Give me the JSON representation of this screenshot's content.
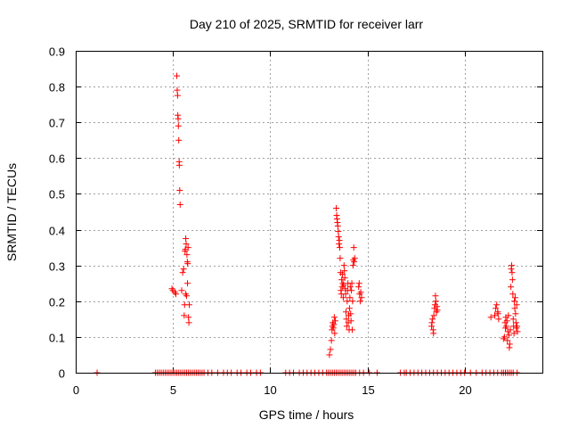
{
  "chart_data": {
    "type": "scatter",
    "title": "Day 210 of 2025, SRMTID for receiver larr",
    "xlabel": "GPS time / hours",
    "ylabel": "SRMTID / TECUs",
    "xlim": [
      0,
      24
    ],
    "ylim": [
      0,
      0.9
    ],
    "xticks": [
      0,
      5,
      10,
      15,
      20
    ],
    "yticks": [
      0,
      0.1,
      0.2,
      0.3,
      0.4,
      0.5,
      0.6,
      0.7,
      0.8,
      0.9
    ],
    "xtick_labels": [
      "0",
      "5",
      "10",
      "15",
      "20"
    ],
    "ytick_labels": [
      "0",
      "0.1",
      "0.2",
      "0.3",
      "0.4",
      "0.5",
      "0.6",
      "0.7",
      "0.8",
      "0.9"
    ],
    "grid": true,
    "marker": "+",
    "series_color": "#ff0000",
    "series": [
      {
        "name": "SRMTID",
        "points": [
          [
            1.1,
            0
          ],
          [
            4.1,
            0
          ],
          [
            4.2,
            0
          ],
          [
            4.3,
            0
          ],
          [
            4.4,
            0
          ],
          [
            4.5,
            0
          ],
          [
            4.6,
            0
          ],
          [
            4.7,
            0
          ],
          [
            4.8,
            0
          ],
          [
            4.9,
            0
          ],
          [
            5.0,
            0
          ],
          [
            5.1,
            0
          ],
          [
            5.2,
            0
          ],
          [
            5.3,
            0
          ],
          [
            5.4,
            0
          ],
          [
            5.5,
            0
          ],
          [
            5.6,
            0
          ],
          [
            5.7,
            0
          ],
          [
            5.8,
            0
          ],
          [
            5.9,
            0
          ],
          [
            6.0,
            0
          ],
          [
            6.1,
            0
          ],
          [
            6.2,
            0
          ],
          [
            6.3,
            0
          ],
          [
            6.4,
            0
          ],
          [
            6.5,
            0
          ],
          [
            6.6,
            0
          ],
          [
            6.8,
            0
          ],
          [
            7.0,
            0
          ],
          [
            7.3,
            0
          ],
          [
            7.6,
            0
          ],
          [
            7.8,
            0
          ],
          [
            8.0,
            0
          ],
          [
            8.3,
            0
          ],
          [
            8.5,
            0
          ],
          [
            8.8,
            0
          ],
          [
            9.0,
            0
          ],
          [
            9.3,
            0
          ],
          [
            9.5,
            0
          ],
          [
            10.8,
            0
          ],
          [
            11.0,
            0
          ],
          [
            11.2,
            0
          ],
          [
            11.5,
            0
          ],
          [
            11.7,
            0
          ],
          [
            11.9,
            0
          ],
          [
            12.1,
            0
          ],
          [
            12.3,
            0
          ],
          [
            12.5,
            0
          ],
          [
            12.7,
            0
          ],
          [
            12.9,
            0
          ],
          [
            13.0,
            0
          ],
          [
            13.1,
            0
          ],
          [
            13.2,
            0
          ],
          [
            13.3,
            0
          ],
          [
            13.4,
            0
          ],
          [
            13.5,
            0
          ],
          [
            13.6,
            0
          ],
          [
            13.7,
            0
          ],
          [
            13.8,
            0
          ],
          [
            13.9,
            0
          ],
          [
            14.0,
            0
          ],
          [
            14.1,
            0
          ],
          [
            14.2,
            0
          ],
          [
            14.3,
            0
          ],
          [
            14.4,
            0
          ],
          [
            14.6,
            0
          ],
          [
            14.8,
            0
          ],
          [
            15.1,
            0
          ],
          [
            15.5,
            0
          ],
          [
            16.7,
            0
          ],
          [
            16.9,
            0
          ],
          [
            17.0,
            0
          ],
          [
            17.2,
            0
          ],
          [
            17.4,
            0
          ],
          [
            17.6,
            0
          ],
          [
            17.8,
            0
          ],
          [
            18.0,
            0
          ],
          [
            18.2,
            0
          ],
          [
            18.4,
            0
          ],
          [
            18.6,
            0
          ],
          [
            18.8,
            0
          ],
          [
            19.0,
            0
          ],
          [
            19.2,
            0
          ],
          [
            19.4,
            0
          ],
          [
            19.6,
            0
          ],
          [
            19.8,
            0
          ],
          [
            20.0,
            0
          ],
          [
            20.3,
            0
          ],
          [
            20.6,
            0
          ],
          [
            20.9,
            0
          ],
          [
            21.1,
            0
          ],
          [
            21.3,
            0
          ],
          [
            21.5,
            0
          ],
          [
            21.7,
            0
          ],
          [
            21.9,
            0
          ],
          [
            22.0,
            0
          ],
          [
            22.1,
            0
          ],
          [
            22.2,
            0
          ],
          [
            22.3,
            0
          ],
          [
            22.4,
            0
          ],
          [
            22.5,
            0
          ],
          [
            22.7,
            0
          ],
          [
            4.95,
            0.235
          ],
          [
            5.0,
            0.23
          ],
          [
            5.1,
            0.225
          ],
          [
            5.15,
            0.22
          ],
          [
            5.2,
            0.83
          ],
          [
            5.22,
            0.79
          ],
          [
            5.24,
            0.775
          ],
          [
            5.25,
            0.72
          ],
          [
            5.27,
            0.71
          ],
          [
            5.28,
            0.69
          ],
          [
            5.3,
            0.65
          ],
          [
            5.32,
            0.59
          ],
          [
            5.33,
            0.58
          ],
          [
            5.35,
            0.51
          ],
          [
            5.37,
            0.47
          ],
          [
            5.45,
            0.23
          ],
          [
            5.5,
            0.28
          ],
          [
            5.55,
            0.29
          ],
          [
            5.58,
            0.16
          ],
          [
            5.6,
            0.19
          ],
          [
            5.62,
            0.34
          ],
          [
            5.64,
            0.345
          ],
          [
            5.65,
            0.22
          ],
          [
            5.66,
            0.375
          ],
          [
            5.68,
            0.36
          ],
          [
            5.7,
            0.215
          ],
          [
            5.72,
            0.33
          ],
          [
            5.74,
            0.31
          ],
          [
            5.75,
            0.25
          ],
          [
            5.76,
            0.305
          ],
          [
            5.78,
            0.35
          ],
          [
            5.8,
            0.155
          ],
          [
            5.82,
            0.14
          ],
          [
            5.84,
            0.19
          ],
          [
            13.05,
            0.05
          ],
          [
            13.1,
            0.065
          ],
          [
            13.15,
            0.09
          ],
          [
            13.18,
            0.12
          ],
          [
            13.2,
            0.13
          ],
          [
            13.22,
            0.14
          ],
          [
            13.25,
            0.125
          ],
          [
            13.28,
            0.135
          ],
          [
            13.3,
            0.155
          ],
          [
            13.32,
            0.11
          ],
          [
            13.35,
            0.145
          ],
          [
            13.4,
            0.46
          ],
          [
            13.42,
            0.44
          ],
          [
            13.44,
            0.43
          ],
          [
            13.46,
            0.42
          ],
          [
            13.48,
            0.41
          ],
          [
            13.5,
            0.395
          ],
          [
            13.52,
            0.38
          ],
          [
            13.54,
            0.36
          ],
          [
            13.56,
            0.37
          ],
          [
            13.58,
            0.35
          ],
          [
            13.6,
            0.32
          ],
          [
            13.62,
            0.28
          ],
          [
            13.64,
            0.23
          ],
          [
            13.66,
            0.22
          ],
          [
            13.68,
            0.26
          ],
          [
            13.7,
            0.24
          ],
          [
            13.72,
            0.275
          ],
          [
            13.74,
            0.25
          ],
          [
            13.76,
            0.21
          ],
          [
            13.78,
            0.245
          ],
          [
            13.8,
            0.3
          ],
          [
            13.82,
            0.285
          ],
          [
            13.84,
            0.265
          ],
          [
            13.86,
            0.235
          ],
          [
            13.88,
            0.22
          ],
          [
            13.9,
            0.17
          ],
          [
            13.92,
            0.15
          ],
          [
            13.94,
            0.13
          ],
          [
            13.96,
            0.2
          ],
          [
            13.98,
            0.23
          ],
          [
            14.0,
            0.25
          ],
          [
            14.02,
            0.14
          ],
          [
            14.04,
            0.16
          ],
          [
            14.06,
            0.12
          ],
          [
            14.08,
            0.18
          ],
          [
            14.1,
            0.21
          ],
          [
            14.12,
            0.24
          ],
          [
            14.14,
            0.165
          ],
          [
            14.16,
            0.145
          ],
          [
            14.18,
            0.23
          ],
          [
            14.2,
            0.25
          ],
          [
            14.22,
            0.12
          ],
          [
            14.24,
            0.2
          ],
          [
            14.26,
            0.3
          ],
          [
            14.28,
            0.315
          ],
          [
            14.3,
            0.35
          ],
          [
            14.32,
            0.31
          ],
          [
            14.35,
            0.32
          ],
          [
            14.55,
            0.24
          ],
          [
            14.58,
            0.25
          ],
          [
            14.6,
            0.22
          ],
          [
            14.63,
            0.2
          ],
          [
            14.66,
            0.225
          ],
          [
            14.7,
            0.21
          ],
          [
            18.3,
            0.13
          ],
          [
            18.32,
            0.14
          ],
          [
            18.35,
            0.15
          ],
          [
            18.38,
            0.12
          ],
          [
            18.4,
            0.11
          ],
          [
            18.42,
            0.16
          ],
          [
            18.45,
            0.18
          ],
          [
            18.48,
            0.19
          ],
          [
            18.5,
            0.215
          ],
          [
            18.52,
            0.2
          ],
          [
            18.55,
            0.17
          ],
          [
            18.58,
            0.185
          ],
          [
            18.6,
            0.175
          ],
          [
            21.35,
            0.155
          ],
          [
            21.55,
            0.16
          ],
          [
            21.6,
            0.18
          ],
          [
            21.65,
            0.19
          ],
          [
            21.7,
            0.17
          ],
          [
            21.72,
            0.165
          ],
          [
            21.75,
            0.15
          ],
          [
            22.0,
            0.095
          ],
          [
            22.05,
            0.1
          ],
          [
            22.08,
            0.14
          ],
          [
            22.1,
            0.125
          ],
          [
            22.12,
            0.155
          ],
          [
            22.15,
            0.13
          ],
          [
            22.18,
            0.145
          ],
          [
            22.2,
            0.09
          ],
          [
            22.22,
            0.115
          ],
          [
            22.25,
            0.16
          ],
          [
            22.28,
            0.105
          ],
          [
            22.3,
            0.07
          ],
          [
            22.32,
            0.08
          ],
          [
            22.35,
            0.12
          ],
          [
            22.38,
            0.24
          ],
          [
            22.4,
            0.29
          ],
          [
            22.42,
            0.3
          ],
          [
            22.44,
            0.28
          ],
          [
            22.46,
            0.26
          ],
          [
            22.48,
            0.22
          ],
          [
            22.5,
            0.15
          ],
          [
            22.52,
            0.13
          ],
          [
            22.54,
            0.11
          ],
          [
            22.56,
            0.2
          ],
          [
            22.58,
            0.18
          ],
          [
            22.6,
            0.21
          ],
          [
            22.62,
            0.165
          ],
          [
            22.64,
            0.14
          ],
          [
            22.66,
            0.125
          ],
          [
            22.68,
            0.19
          ],
          [
            22.7,
            0.13
          ],
          [
            22.72,
            0.115
          ]
        ]
      }
    ]
  }
}
